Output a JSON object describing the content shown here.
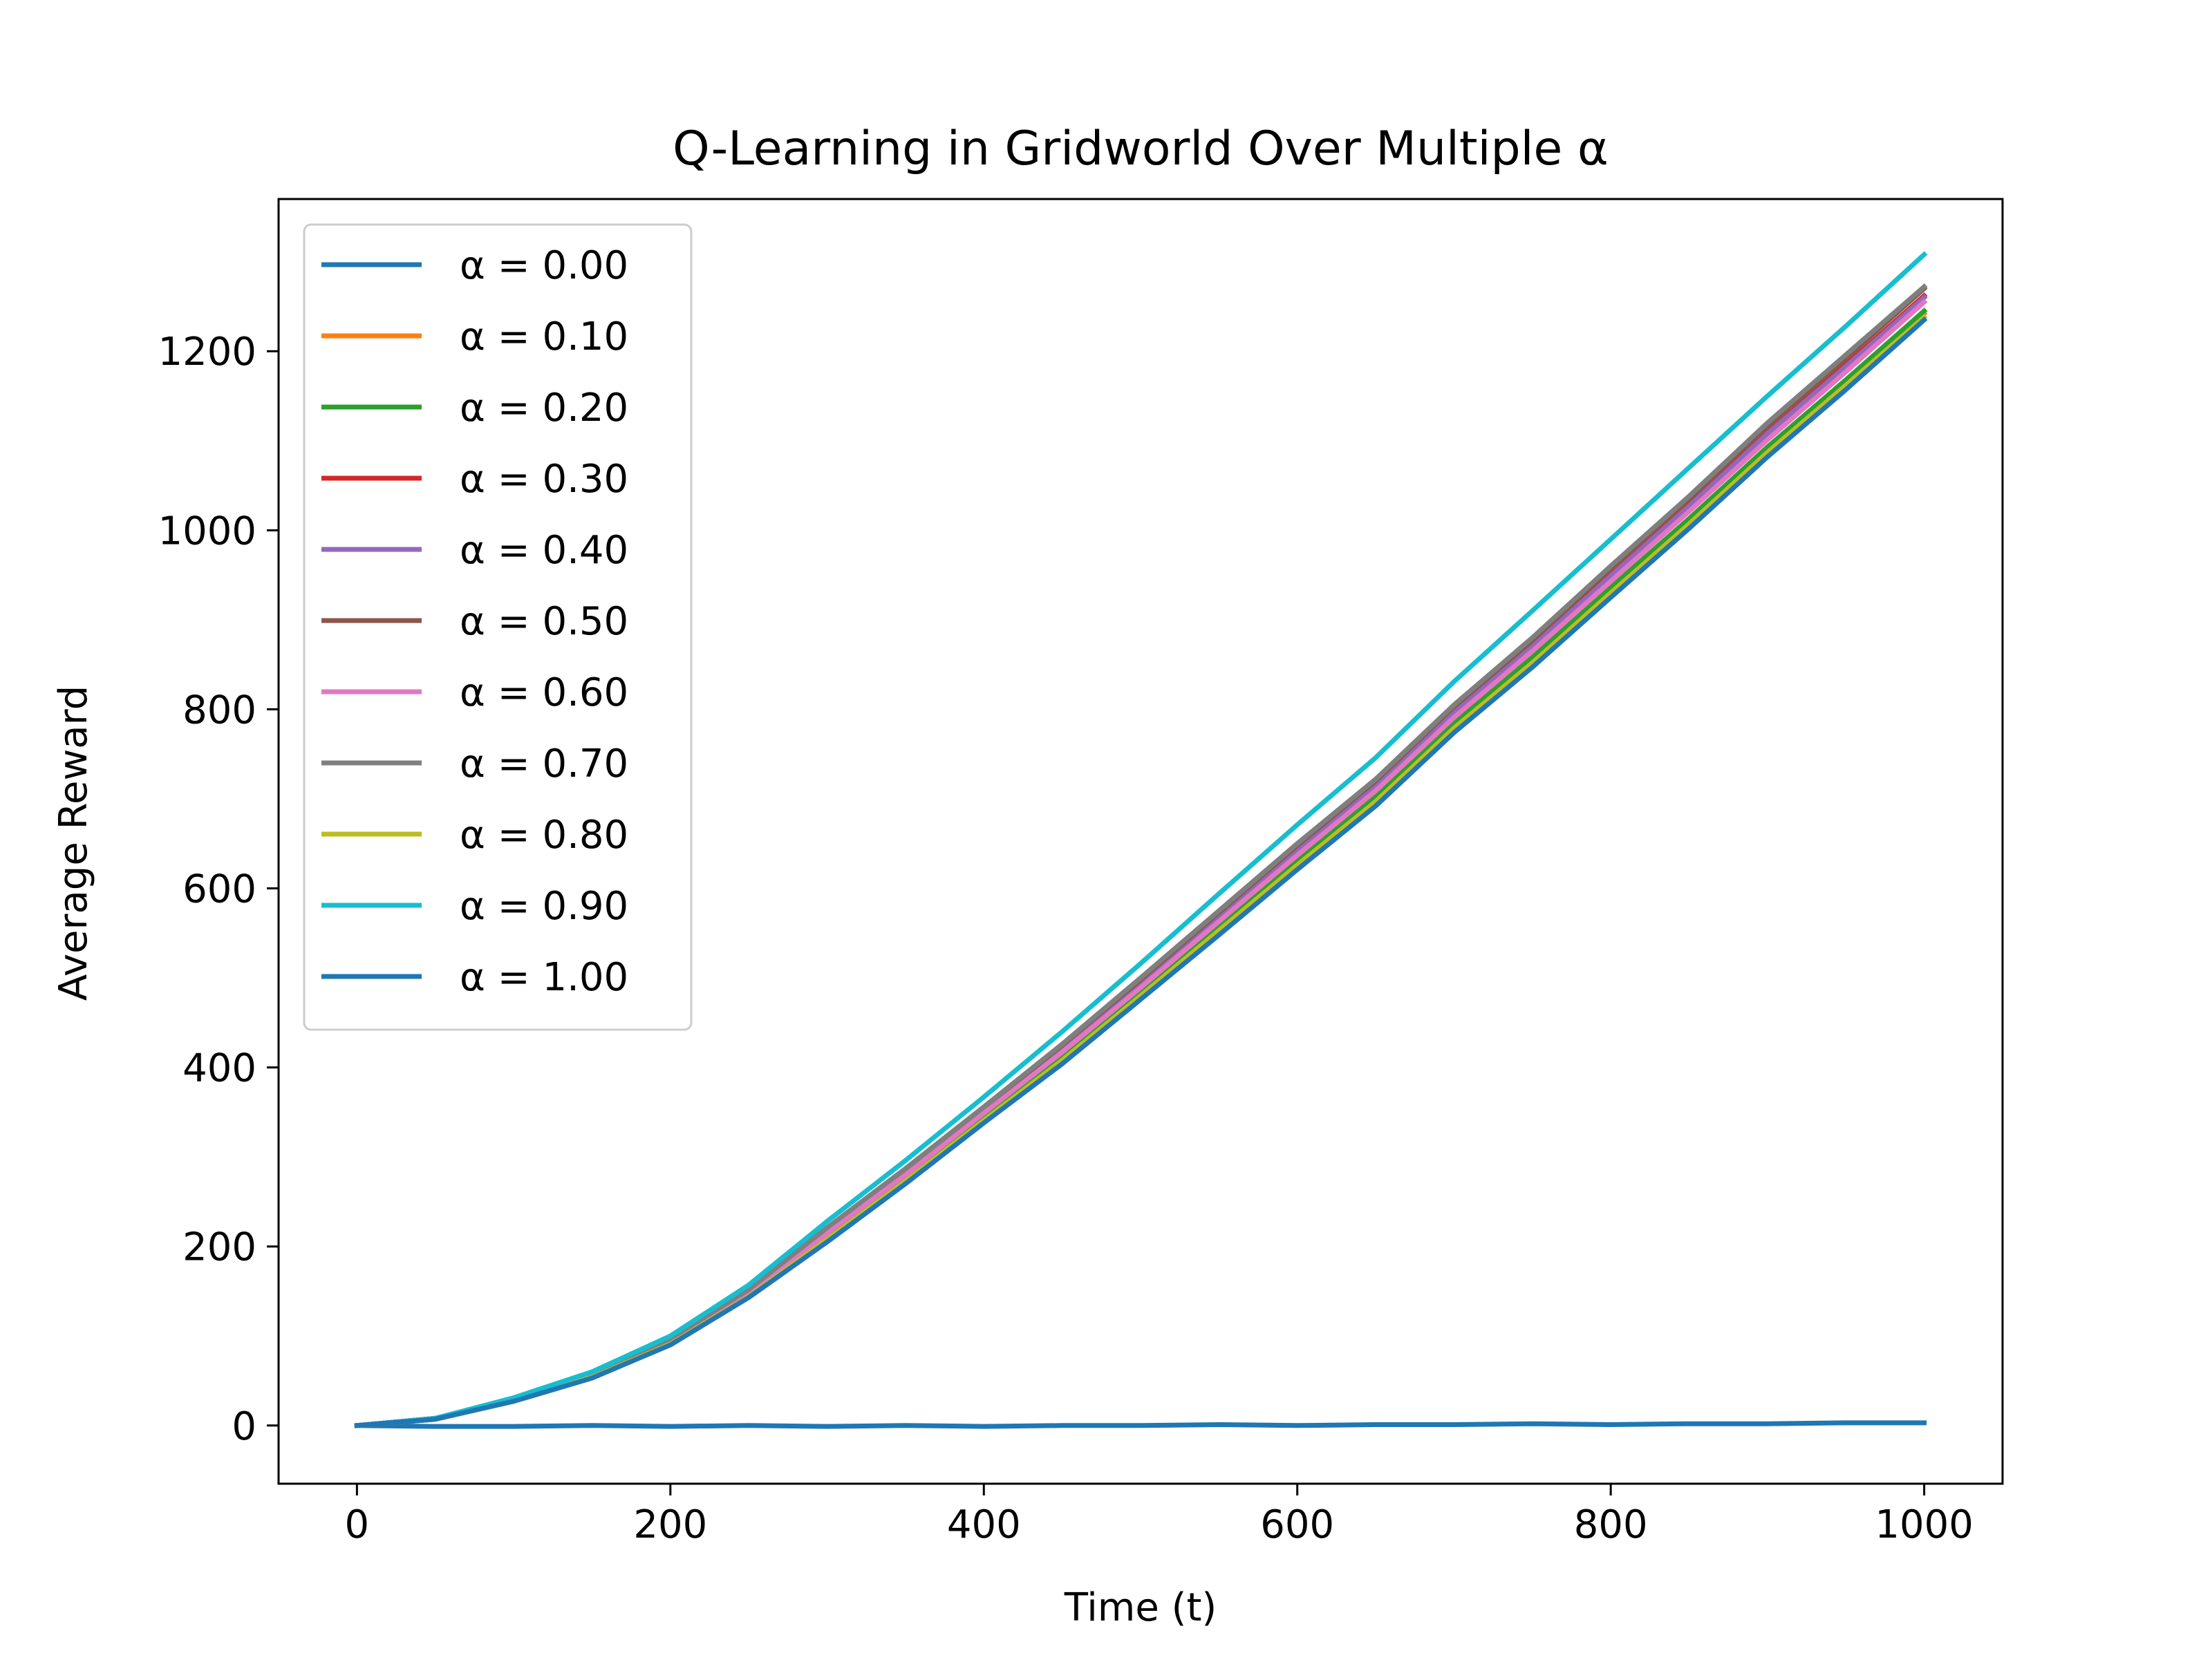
{
  "chart_data": {
    "type": "line",
    "title": "Q-Learning in Gridworld Over Multiple α",
    "xlabel": "Time (t)",
    "ylabel": "Average Reward",
    "xlim": [
      -50,
      1050
    ],
    "ylim": [
      -65,
      1370
    ],
    "xticks": [
      0,
      200,
      400,
      600,
      800,
      1000
    ],
    "yticks": [
      0,
      200,
      400,
      600,
      800,
      1000,
      1200
    ],
    "grid": false,
    "legend_position": "upper left",
    "x": [
      0,
      50,
      100,
      150,
      200,
      250,
      300,
      350,
      400,
      450,
      500,
      550,
      600,
      650,
      700,
      750,
      800,
      850,
      900,
      950,
      1000
    ],
    "series": [
      {
        "name": "α = 0.00",
        "color": "#1f77b4",
        "values": [
          0,
          -1,
          -1,
          0,
          -1,
          0,
          -1,
          0,
          -1,
          0,
          0,
          1,
          0,
          1,
          1,
          2,
          1,
          2,
          2,
          3,
          3
        ]
      },
      {
        "name": "α = 0.10",
        "color": "#ff7f0e",
        "values": [
          0,
          7,
          28,
          54,
          92,
          145,
          210,
          275,
          343,
          410,
          482,
          555,
          629,
          700,
          782,
          855,
          933,
          1010,
          1090,
          1165,
          1242
        ]
      },
      {
        "name": "α = 0.20",
        "color": "#2ca02c",
        "values": [
          0,
          7,
          28,
          55,
          93,
          146,
          212,
          277,
          345,
          412,
          485,
          558,
          632,
          703,
          785,
          858,
          936,
          1013,
          1093,
          1168,
          1245
        ]
      },
      {
        "name": "α = 0.30",
        "color": "#d62728",
        "values": [
          0,
          8,
          29,
          57,
          96,
          150,
          218,
          283,
          352,
          421,
          494,
          568,
          643,
          715,
          797,
          871,
          950,
          1028,
          1109,
          1185,
          1262
        ]
      },
      {
        "name": "α = 0.40",
        "color": "#9467bd",
        "values": [
          0,
          8,
          29,
          57,
          95,
          149,
          216,
          282,
          351,
          420,
          493,
          567,
          642,
          714,
          796,
          870,
          949,
          1027,
          1108,
          1183,
          1260
        ]
      },
      {
        "name": "α = 0.50",
        "color": "#8c564b",
        "values": [
          0,
          8,
          30,
          58,
          97,
          151,
          220,
          286,
          355,
          425,
          498,
          573,
          648,
          720,
          803,
          877,
          957,
          1035,
          1116,
          1192,
          1270
        ]
      },
      {
        "name": "α = 0.60",
        "color": "#e377c2",
        "values": [
          0,
          8,
          29,
          56,
          94,
          148,
          215,
          280,
          349,
          417,
          489,
          563,
          637,
          709,
          791,
          865,
          943,
          1021,
          1101,
          1177,
          1255
        ]
      },
      {
        "name": "α = 0.70",
        "color": "#7f7f7f",
        "values": [
          0,
          8,
          30,
          58,
          97,
          152,
          221,
          287,
          356,
          426,
          500,
          575,
          650,
          722,
          805,
          880,
          960,
          1038,
          1120,
          1196,
          1272
        ]
      },
      {
        "name": "α = 0.80",
        "color": "#bcbd22",
        "values": [
          0,
          7,
          28,
          54,
          91,
          144,
          208,
          273,
          341,
          408,
          480,
          553,
          626,
          697,
          779,
          852,
          930,
          1007,
          1087,
          1162,
          1238
        ]
      },
      {
        "name": "α = 0.90",
        "color": "#17becf",
        "values": [
          0,
          8,
          31,
          60,
          100,
          157,
          228,
          296,
          367,
          440,
          516,
          594,
          671,
          746,
          831,
          910,
          990,
          1070,
          1150,
          1228,
          1308
        ]
      },
      {
        "name": "α = 1.00",
        "color": "#1f77b4",
        "values": [
          0,
          7,
          27,
          53,
          90,
          143,
          205,
          270,
          338,
          404,
          476,
          548,
          621,
          692,
          774,
          847,
          925,
          1002,
          1082,
          1157,
          1235
        ]
      }
    ]
  }
}
